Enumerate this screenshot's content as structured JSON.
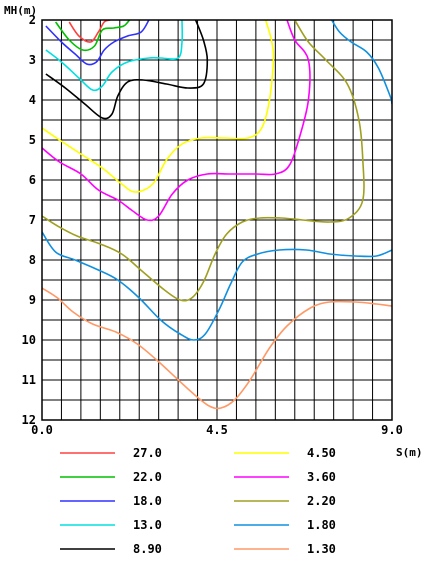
{
  "chart_data": {
    "type": "line",
    "title": "",
    "xlabel": "S(m)",
    "ylabel": "MH(m)",
    "xlim": [
      0.0,
      9.0
    ],
    "ylim": [
      12,
      2
    ],
    "x_tick_labels": [
      "0.0",
      "4.5",
      "9.0"
    ],
    "y_tick_labels": [
      "2",
      "3",
      "4",
      "5",
      "6",
      "7",
      "8",
      "9",
      "10",
      "11",
      "12"
    ],
    "grid": true,
    "legend_position": "bottom",
    "series": [
      {
        "name": "27.0",
        "color": "#ff4040",
        "segments": [
          [
            [
              0.7,
              2.05
            ],
            [
              0.95,
              2.4
            ],
            [
              1.25,
              2.55
            ],
            [
              1.45,
              2.3
            ],
            [
              1.6,
              2.05
            ],
            [
              1.75,
              2.0
            ]
          ]
        ]
      },
      {
        "name": "22.0",
        "color": "#00c000",
        "segments": [
          [
            [
              0.35,
              2.05
            ],
            [
              0.7,
              2.5
            ],
            [
              1.05,
              2.75
            ],
            [
              1.35,
              2.65
            ],
            [
              1.55,
              2.25
            ],
            [
              1.85,
              2.2
            ],
            [
              2.1,
              2.15
            ],
            [
              2.25,
              2.0
            ]
          ]
        ]
      },
      {
        "name": "18.0",
        "color": "#3030ff",
        "segments": [
          [
            [
              0.1,
              2.15
            ],
            [
              0.5,
              2.55
            ],
            [
              0.85,
              2.85
            ],
            [
              1.15,
              3.1
            ],
            [
              1.4,
              3.05
            ],
            [
              1.6,
              2.75
            ],
            [
              1.85,
              2.55
            ],
            [
              2.2,
              2.4
            ],
            [
              2.55,
              2.3
            ],
            [
              2.75,
              2.0
            ]
          ]
        ]
      },
      {
        "name": "13.0",
        "color": "#00e0e0",
        "segments": [
          [
            [
              0.1,
              2.75
            ],
            [
              0.5,
              3.05
            ],
            [
              0.95,
              3.45
            ],
            [
              1.3,
              3.75
            ],
            [
              1.55,
              3.65
            ],
            [
              1.8,
              3.3
            ],
            [
              2.2,
              3.05
            ],
            [
              2.75,
              2.95
            ],
            [
              3.05,
              2.95
            ],
            [
              3.5,
              2.95
            ],
            [
              3.6,
              2.55
            ],
            [
              3.6,
              2.0
            ]
          ]
        ]
      },
      {
        "name": "8.90",
        "color": "#000000",
        "segments": [
          [
            [
              0.1,
              3.35
            ],
            [
              0.6,
              3.7
            ],
            [
              1.1,
              4.1
            ],
            [
              1.55,
              4.45
            ],
            [
              1.8,
              4.35
            ],
            [
              1.95,
              3.9
            ],
            [
              2.2,
              3.55
            ],
            [
              2.6,
              3.5
            ],
            [
              3.2,
              3.6
            ],
            [
              3.75,
              3.7
            ],
            [
              4.15,
              3.6
            ],
            [
              4.25,
              3.0
            ],
            [
              4.15,
              2.5
            ],
            [
              3.95,
              2.0
            ]
          ]
        ]
      },
      {
        "name": "4.50",
        "color": "#ffff00",
        "segments": [
          [
            [
              0.0,
              4.7
            ],
            [
              0.45,
              5.0
            ],
            [
              1.0,
              5.35
            ],
            [
              1.55,
              5.7
            ],
            [
              2.05,
              6.1
            ],
            [
              2.4,
              6.3
            ],
            [
              2.85,
              6.1
            ],
            [
              3.2,
              5.5
            ],
            [
              3.6,
              5.1
            ],
            [
              4.1,
              4.95
            ],
            [
              4.7,
              4.95
            ],
            [
              5.3,
              4.95
            ],
            [
              5.65,
              4.7
            ],
            [
              5.85,
              4.0
            ],
            [
              5.95,
              3.0
            ],
            [
              5.9,
              2.5
            ],
            [
              5.75,
              2.0
            ]
          ]
        ]
      },
      {
        "name": "3.60",
        "color": "#ff00ff",
        "segments": [
          [
            [
              0.0,
              5.2
            ],
            [
              0.45,
              5.55
            ],
            [
              1.0,
              5.85
            ],
            [
              1.45,
              6.25
            ],
            [
              1.95,
              6.5
            ],
            [
              2.3,
              6.75
            ],
            [
              2.7,
              7.0
            ],
            [
              3.0,
              6.9
            ],
            [
              3.35,
              6.35
            ],
            [
              3.75,
              6.0
            ],
            [
              4.25,
              5.85
            ],
            [
              4.85,
              5.85
            ],
            [
              5.5,
              5.85
            ],
            [
              6.0,
              5.85
            ],
            [
              6.35,
              5.65
            ],
            [
              6.6,
              5.0
            ],
            [
              6.85,
              4.0
            ],
            [
              6.85,
              3.0
            ],
            [
              6.5,
              2.5
            ],
            [
              6.3,
              2.0
            ]
          ]
        ]
      },
      {
        "name": "2.20",
        "color": "#a0a020",
        "segments": [
          [
            [
              0.0,
              6.9
            ],
            [
              0.4,
              7.15
            ],
            [
              0.9,
              7.4
            ],
            [
              1.5,
              7.6
            ],
            [
              2.05,
              7.85
            ],
            [
              2.6,
              8.3
            ],
            [
              3.15,
              8.75
            ],
            [
              3.55,
              9.0
            ],
            [
              3.85,
              8.95
            ],
            [
              4.15,
              8.55
            ],
            [
              4.45,
              7.85
            ],
            [
              4.75,
              7.35
            ],
            [
              5.15,
              7.05
            ],
            [
              5.6,
              6.95
            ],
            [
              6.15,
              6.95
            ],
            [
              6.7,
              7.0
            ],
            [
              7.4,
              7.05
            ],
            [
              7.9,
              6.95
            ],
            [
              8.25,
              6.5
            ],
            [
              8.25,
              5.5
            ],
            [
              8.15,
              4.5
            ],
            [
              7.85,
              3.6
            ],
            [
              7.3,
              3.0
            ],
            [
              6.85,
              2.55
            ],
            [
              6.5,
              2.0
            ]
          ]
        ]
      },
      {
        "name": "1.80",
        "color": "#1090e0",
        "segments": [
          [
            [
              0.0,
              7.3
            ],
            [
              0.35,
              7.8
            ],
            [
              0.85,
              8.0
            ],
            [
              1.45,
              8.25
            ],
            [
              1.95,
              8.5
            ],
            [
              2.5,
              8.95
            ],
            [
              3.05,
              9.5
            ],
            [
              3.55,
              9.85
            ],
            [
              3.9,
              10.0
            ],
            [
              4.2,
              9.85
            ],
            [
              4.55,
              9.25
            ],
            [
              4.85,
              8.6
            ],
            [
              5.15,
              8.05
            ],
            [
              5.55,
              7.85
            ],
            [
              6.1,
              7.75
            ],
            [
              6.8,
              7.75
            ],
            [
              7.4,
              7.85
            ],
            [
              8.05,
              7.9
            ],
            [
              8.6,
              7.9
            ],
            [
              9.0,
              7.75
            ]
          ],
          [
            [
              7.45,
              2.0
            ],
            [
              7.65,
              2.3
            ],
            [
              7.95,
              2.55
            ],
            [
              8.35,
              2.8
            ],
            [
              8.65,
              3.2
            ],
            [
              8.95,
              3.9
            ],
            [
              9.0,
              4.1
            ]
          ]
        ]
      },
      {
        "name": "1.30",
        "color": "#ff9966",
        "segments": [
          [
            [
              0.0,
              8.7
            ],
            [
              0.4,
              8.95
            ],
            [
              0.8,
              9.3
            ],
            [
              1.3,
              9.6
            ],
            [
              1.9,
              9.8
            ],
            [
              2.45,
              10.1
            ],
            [
              2.95,
              10.5
            ],
            [
              3.45,
              10.95
            ],
            [
              3.9,
              11.35
            ],
            [
              4.3,
              11.65
            ],
            [
              4.6,
              11.7
            ],
            [
              4.95,
              11.5
            ],
            [
              5.35,
              11.0
            ],
            [
              5.85,
              10.2
            ],
            [
              6.3,
              9.65
            ],
            [
              6.9,
              9.2
            ],
            [
              7.4,
              9.05
            ],
            [
              8.05,
              9.05
            ],
            [
              8.6,
              9.1
            ],
            [
              9.0,
              9.15
            ]
          ]
        ]
      }
    ]
  }
}
